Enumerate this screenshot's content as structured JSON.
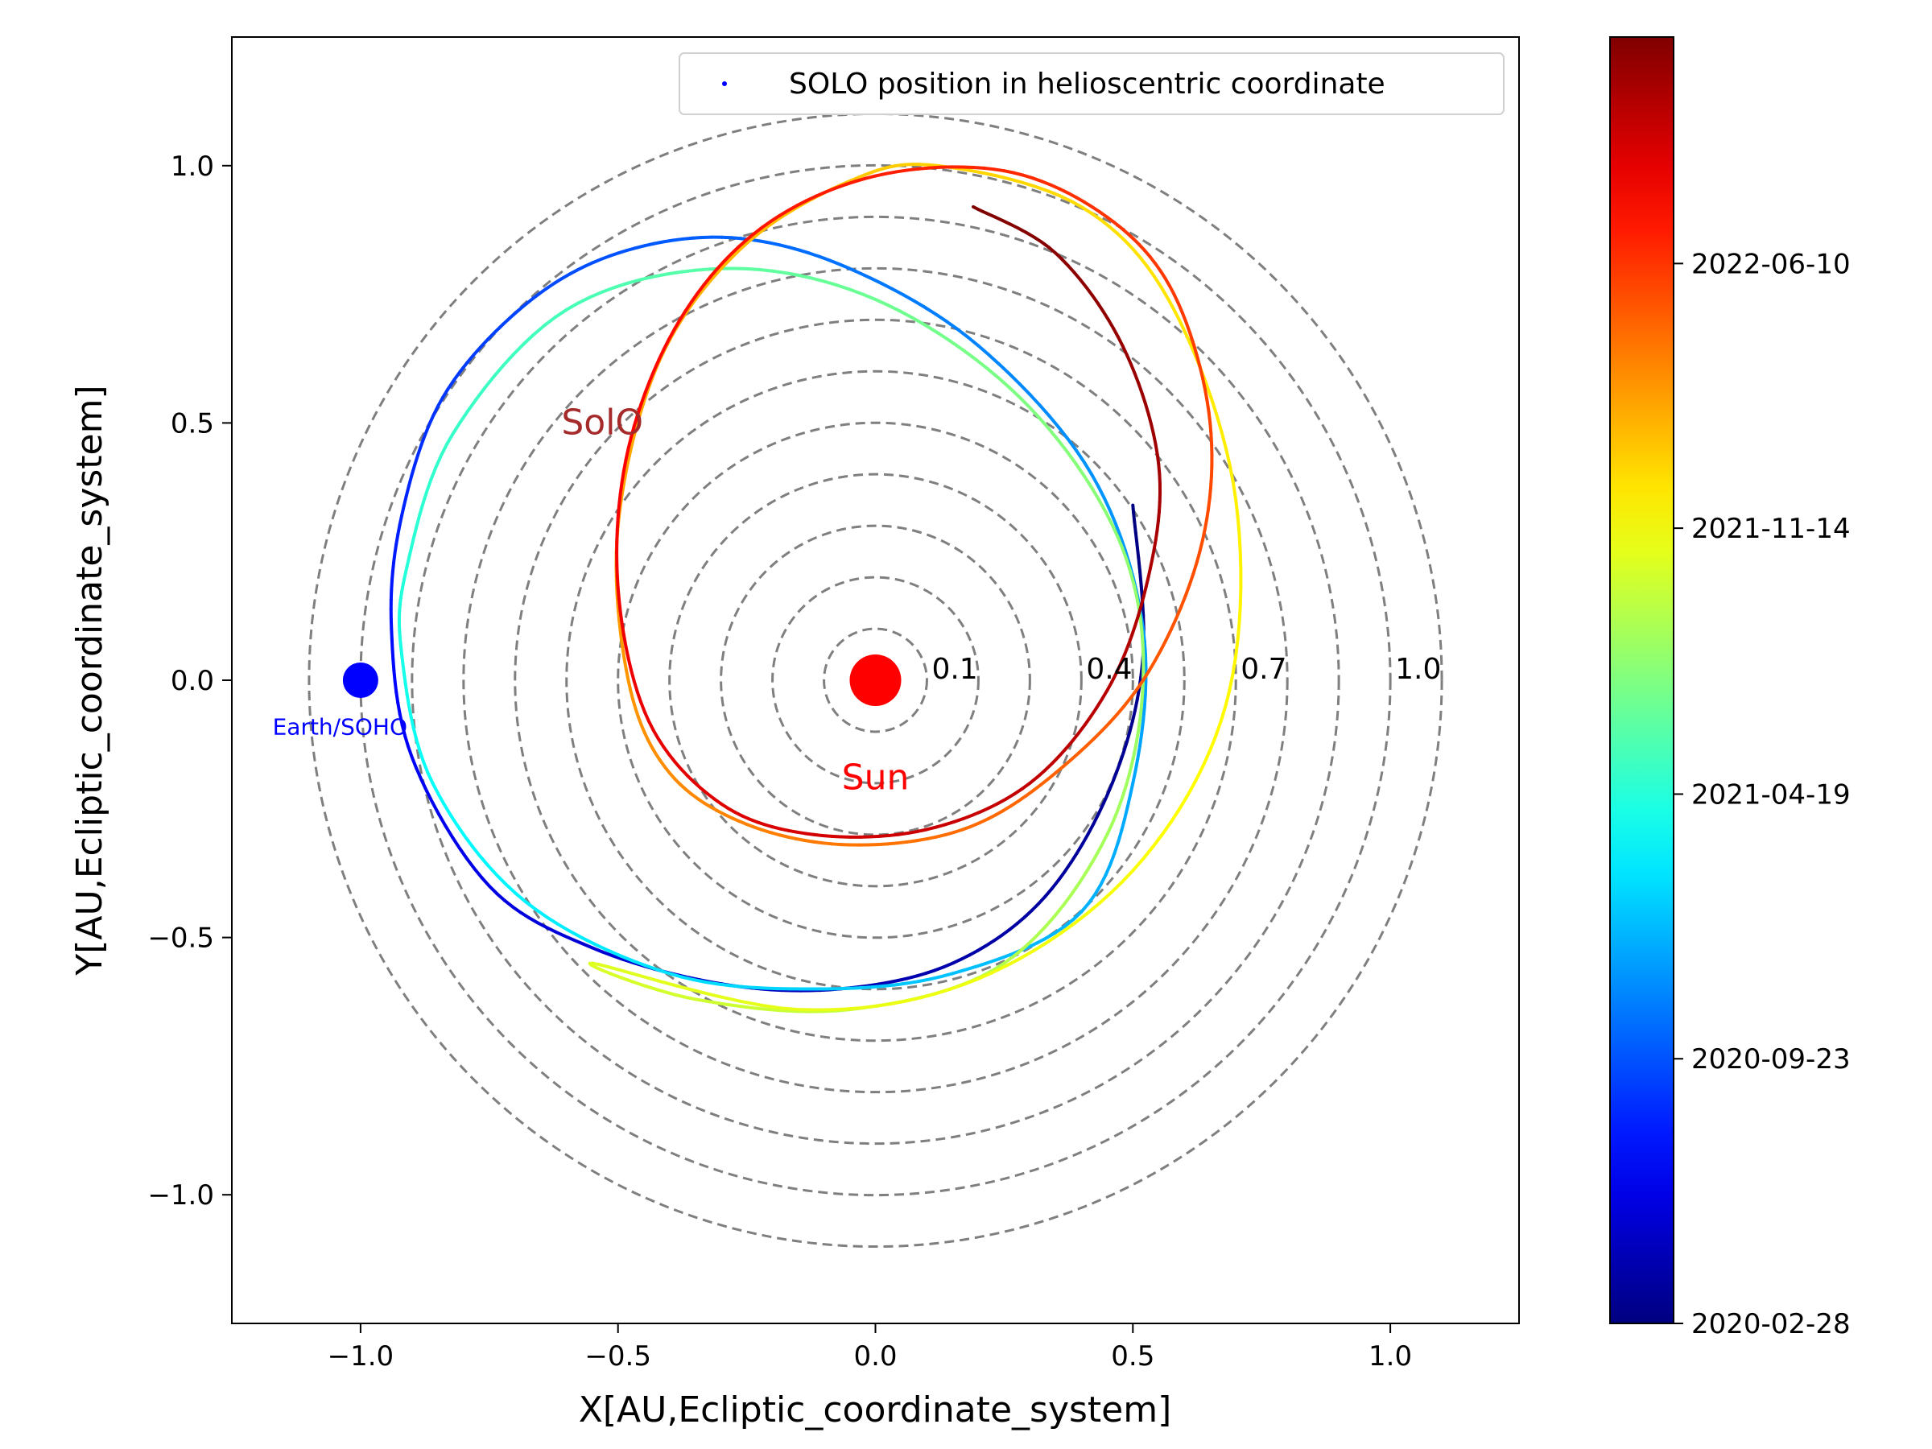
{
  "chart_data": {
    "type": "scatter",
    "xlabel": "X[AU,Ecliptic_coordinate_system]",
    "ylabel": "Y[AU,Ecliptic_coordinate_system]",
    "xlim": [
      -1.25,
      1.25
    ],
    "ylim": [
      -1.25,
      1.25
    ],
    "xticks": [
      -1.0,
      -0.5,
      0.0,
      0.5,
      1.0
    ],
    "yticks": [
      -1.0,
      -0.5,
      0.0,
      0.5,
      1.0
    ],
    "xtick_labels": [
      "−1.0",
      "−0.5",
      "0.0",
      "0.5",
      "1.0"
    ],
    "ytick_labels": [
      "−1.0",
      "−0.5",
      "0.0",
      "0.5",
      "1.0"
    ],
    "legend": {
      "label": "SOLO position in helioscentric coordinate",
      "placement": "top-right",
      "marker_color": "#0000ff"
    },
    "reference_rings": {
      "radii": [
        0.1,
        0.2,
        0.3,
        0.4,
        0.5,
        0.6,
        0.7,
        0.8,
        0.9,
        1.0,
        1.1
      ],
      "labels": [
        {
          "r": 0.1,
          "text": "0.1"
        },
        {
          "r": 0.4,
          "text": "0.4"
        },
        {
          "r": 0.7,
          "text": "0.7"
        },
        {
          "r": 1.0,
          "text": "1.0"
        }
      ],
      "color": "#7f7f7f",
      "style": "dashed"
    },
    "bodies": [
      {
        "name": "Sun",
        "x": 0.0,
        "y": 0.0,
        "color": "#ff0000",
        "label": "Sun",
        "label_x": 0.0,
        "label_y": -0.19
      },
      {
        "name": "Earth/SOHO",
        "x": -1.0,
        "y": 0.0,
        "color": "#0000ff",
        "label": "Earth/SOHO",
        "label_x": -1.04,
        "label_y": -0.09
      }
    ],
    "annotations": [
      {
        "text": "SolO",
        "x": -0.61,
        "y": 0.5,
        "color": "#a52a2a"
      }
    ],
    "trajectory": {
      "colormap": "jet",
      "start_date": "2020-02-28",
      "points": [
        {
          "date": "2020-02-28",
          "x": 0.5,
          "y": 0.34
        },
        {
          "date": "2020-03-10",
          "x": 0.52,
          "y": 0.05
        },
        {
          "date": "2020-03-20",
          "x": 0.46,
          "y": -0.2
        },
        {
          "date": "2020-03-30",
          "x": 0.33,
          "y": -0.42
        },
        {
          "date": "2020-04-10",
          "x": 0.15,
          "y": -0.55
        },
        {
          "date": "2020-04-22",
          "x": -0.07,
          "y": -0.6
        },
        {
          "date": "2020-05-05",
          "x": -0.3,
          "y": -0.59
        },
        {
          "date": "2020-05-20",
          "x": -0.55,
          "y": -0.52
        },
        {
          "date": "2020-06-05",
          "x": -0.75,
          "y": -0.4
        },
        {
          "date": "2020-06-25",
          "x": -0.9,
          "y": -0.15
        },
        {
          "date": "2020-07-15",
          "x": -0.94,
          "y": 0.1
        },
        {
          "date": "2020-08-05",
          "x": -0.92,
          "y": 0.32
        },
        {
          "date": "2020-08-25",
          "x": -0.84,
          "y": 0.55
        },
        {
          "date": "2020-09-10",
          "x": -0.68,
          "y": 0.73
        },
        {
          "date": "2020-09-23",
          "x": -0.5,
          "y": 0.83
        },
        {
          "date": "2020-10-08",
          "x": -0.28,
          "y": 0.86
        },
        {
          "date": "2020-10-25",
          "x": -0.05,
          "y": 0.8
        },
        {
          "date": "2020-11-10",
          "x": 0.2,
          "y": 0.65
        },
        {
          "date": "2020-11-25",
          "x": 0.42,
          "y": 0.4
        },
        {
          "date": "2020-12-05",
          "x": 0.52,
          "y": 0.1
        },
        {
          "date": "2020-12-15",
          "x": 0.5,
          "y": -0.2
        },
        {
          "date": "2020-12-27",
          "x": 0.4,
          "y": -0.45
        },
        {
          "date": "2021-01-10",
          "x": 0.15,
          "y": -0.57
        },
        {
          "date": "2021-01-25",
          "x": -0.12,
          "y": -0.6
        },
        {
          "date": "2021-02-10",
          "x": -0.4,
          "y": -0.57
        },
        {
          "date": "2021-02-28",
          "x": -0.68,
          "y": -0.43
        },
        {
          "date": "2021-03-18",
          "x": -0.86,
          "y": -0.2
        },
        {
          "date": "2021-04-05",
          "x": -0.92,
          "y": 0.05
        },
        {
          "date": "2021-04-19",
          "x": -0.91,
          "y": 0.22
        },
        {
          "date": "2021-05-05",
          "x": -0.82,
          "y": 0.48
        },
        {
          "date": "2021-05-22",
          "x": -0.6,
          "y": 0.72
        },
        {
          "date": "2021-06-10",
          "x": -0.3,
          "y": 0.8
        },
        {
          "date": "2021-06-28",
          "x": 0.0,
          "y": 0.74
        },
        {
          "date": "2021-07-15",
          "x": 0.28,
          "y": 0.55
        },
        {
          "date": "2021-07-30",
          "x": 0.47,
          "y": 0.28
        },
        {
          "date": "2021-08-10",
          "x": 0.52,
          "y": 0.0
        },
        {
          "date": "2021-08-22",
          "x": 0.45,
          "y": -0.3
        },
        {
          "date": "2021-09-05",
          "x": 0.25,
          "y": -0.55
        },
        {
          "date": "2021-09-20",
          "x": -0.05,
          "y": -0.64
        },
        {
          "date": "2021-10-05",
          "x": -0.35,
          "y": -0.62
        },
        {
          "date": "2021-10-18",
          "x": -0.55,
          "y": -0.55
        },
        {
          "date": "2021-10-28",
          "x": -0.15,
          "y": -0.64
        },
        {
          "date": "2021-11-05",
          "x": 0.2,
          "y": -0.58
        },
        {
          "date": "2021-11-14",
          "x": 0.5,
          "y": -0.37
        },
        {
          "date": "2021-11-25",
          "x": 0.68,
          "y": -0.05
        },
        {
          "date": "2021-12-05",
          "x": 0.7,
          "y": 0.35
        },
        {
          "date": "2021-12-15",
          "x": 0.58,
          "y": 0.72
        },
        {
          "date": "2021-12-25",
          "x": 0.4,
          "y": 0.92
        },
        {
          "date": "2022-01-05",
          "x": 0.12,
          "y": 1.0
        },
        {
          "date": "2022-01-15",
          "x": -0.05,
          "y": 0.97
        },
        {
          "date": "2022-01-28",
          "x": -0.26,
          "y": 0.84
        },
        {
          "date": "2022-02-10",
          "x": -0.42,
          "y": 0.62
        },
        {
          "date": "2022-02-22",
          "x": -0.5,
          "y": 0.3
        },
        {
          "date": "2022-03-05",
          "x": -0.48,
          "y": 0.0
        },
        {
          "date": "2022-03-15",
          "x": -0.4,
          "y": -0.18
        },
        {
          "date": "2022-03-25",
          "x": -0.25,
          "y": -0.28
        },
        {
          "date": "2022-04-05",
          "x": -0.05,
          "y": -0.32
        },
        {
          "date": "2022-04-15",
          "x": 0.17,
          "y": -0.29
        },
        {
          "date": "2022-04-25",
          "x": 0.35,
          "y": -0.18
        },
        {
          "date": "2022-05-05",
          "x": 0.52,
          "y": 0.0
        },
        {
          "date": "2022-05-15",
          "x": 0.63,
          "y": 0.25
        },
        {
          "date": "2022-05-25",
          "x": 0.65,
          "y": 0.5
        },
        {
          "date": "2022-06-05",
          "x": 0.58,
          "y": 0.75
        },
        {
          "date": "2022-06-10",
          "x": 0.45,
          "y": 0.9
        },
        {
          "date": "2022-06-22",
          "x": 0.25,
          "y": 0.99
        },
        {
          "date": "2022-07-02",
          "x": 0.0,
          "y": 0.98
        },
        {
          "date": "2022-07-12",
          "x": -0.22,
          "y": 0.88
        },
        {
          "date": "2022-07-22",
          "x": -0.38,
          "y": 0.7
        },
        {
          "date": "2022-08-02",
          "x": -0.48,
          "y": 0.45
        },
        {
          "date": "2022-08-12",
          "x": -0.5,
          "y": 0.18
        },
        {
          "date": "2022-08-22",
          "x": -0.44,
          "y": -0.08
        },
        {
          "date": "2022-09-01",
          "x": -0.3,
          "y": -0.24
        },
        {
          "date": "2022-09-11",
          "x": -0.12,
          "y": -0.3
        },
        {
          "date": "2022-09-21",
          "x": 0.1,
          "y": -0.29
        },
        {
          "date": "2022-10-01",
          "x": 0.3,
          "y": -0.2
        },
        {
          "date": "2022-10-10",
          "x": 0.45,
          "y": -0.02
        },
        {
          "date": "2022-10-20",
          "x": 0.53,
          "y": 0.2
        },
        {
          "date": "2022-11-01",
          "x": 0.55,
          "y": 0.42
        },
        {
          "date": "2022-11-12",
          "x": 0.48,
          "y": 0.65
        },
        {
          "date": "2022-11-25",
          "x": 0.35,
          "y": 0.83
        },
        {
          "date": "2022-12-05",
          "x": 0.19,
          "y": 0.92
        }
      ]
    },
    "colorbar": {
      "colormap": "jet",
      "range": [
        "2020-02-28",
        "2022-12-05"
      ],
      "ticks": [
        "2020-02-28",
        "2020-09-23",
        "2021-04-19",
        "2021-11-14",
        "2022-06-10"
      ],
      "placement": "right"
    }
  }
}
